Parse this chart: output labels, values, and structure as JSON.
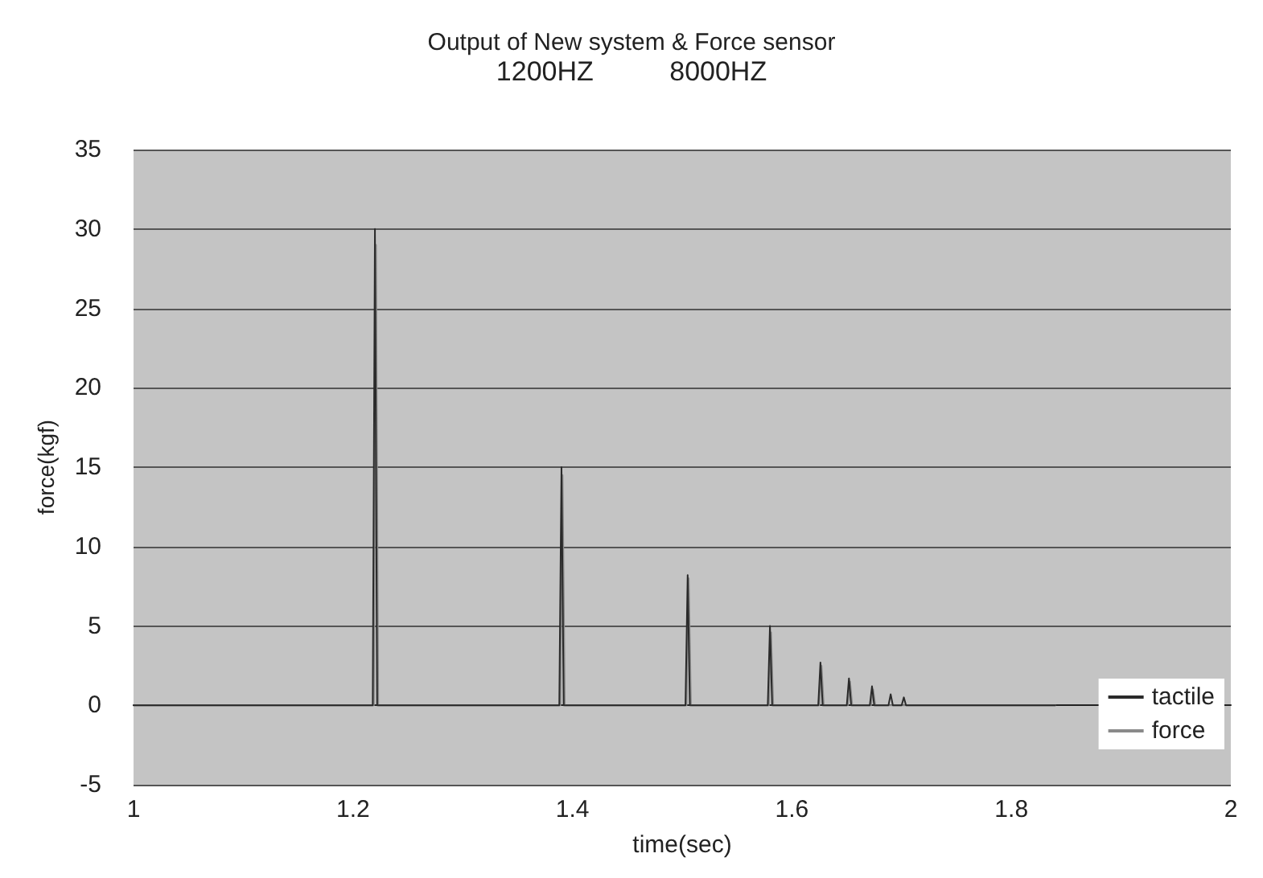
{
  "chart_data": {
    "type": "line",
    "title": "Output of New system & Force sensor",
    "subtitle": "1200HZ          8000HZ",
    "xlabel": "time(sec)",
    "ylabel": "force(kgf)",
    "xlim": [
      1,
      2
    ],
    "xticks": [
      1,
      1.2,
      1.4,
      1.6,
      1.8,
      2
    ],
    "ylim": [
      -5,
      35
    ],
    "yticks": [
      -5,
      0,
      5,
      10,
      15,
      20,
      25,
      30,
      35
    ],
    "grid": "y",
    "legend": "bottom right",
    "marker": "none",
    "line_style": "solid",
    "series": [
      {
        "name": "tactile",
        "color": "#2a2a2a",
        "x": [
          1,
          1.218,
          1.22,
          1.222,
          1.388,
          1.39,
          1.392,
          1.503,
          1.505,
          1.507,
          1.578,
          1.58,
          1.582,
          1.624,
          1.626,
          1.628,
          1.65,
          1.652,
          1.654,
          1.671,
          1.673,
          1.675,
          1.688,
          1.69,
          1.692,
          1.7,
          1.702,
          1.704,
          1.84
        ],
        "values": [
          0,
          0,
          30,
          0,
          0,
          15,
          0,
          0,
          8.2,
          0,
          0,
          5,
          0,
          0,
          2.7,
          0,
          0,
          1.7,
          0,
          0,
          1.2,
          0,
          0,
          0.7,
          0,
          0,
          0.5,
          0,
          0
        ]
      },
      {
        "name": "force",
        "color": "#8a8a8a",
        "x": [
          1,
          1.219,
          1.221,
          1.223,
          1.389,
          1.391,
          1.393,
          1.504,
          1.506,
          1.508,
          1.579,
          1.581,
          1.583,
          1.625,
          1.627,
          1.629,
          1.651,
          1.653,
          1.655,
          1.672,
          1.674,
          1.676,
          1.84
        ],
        "values": [
          0,
          0,
          29,
          0,
          0,
          14.5,
          0,
          0,
          8,
          0,
          0,
          4.6,
          0,
          0,
          2.5,
          0,
          0,
          1.5,
          0,
          0,
          1,
          0,
          0
        ]
      }
    ]
  }
}
